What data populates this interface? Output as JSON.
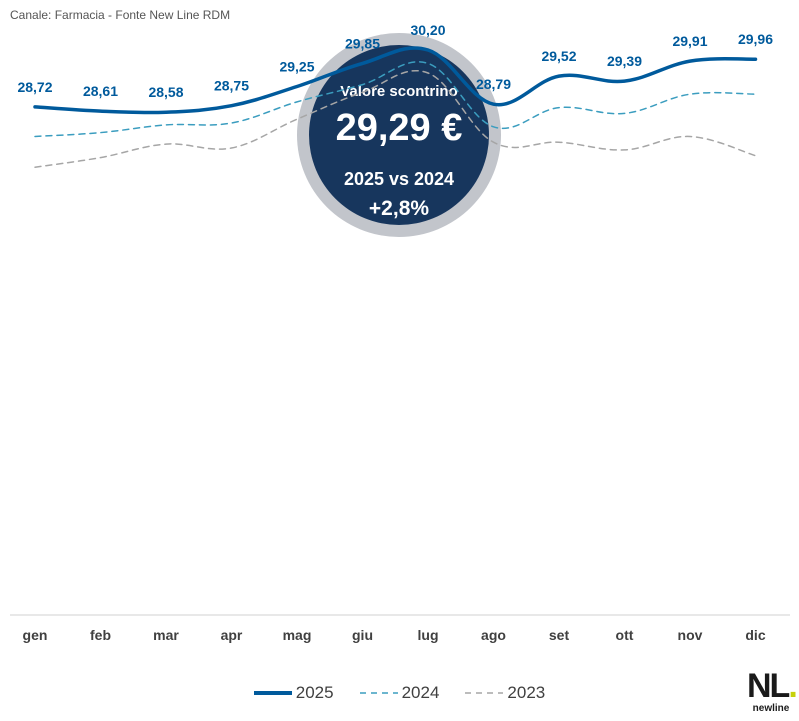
{
  "source": "Canale: Farmacia - Fonte New Line RDM",
  "badge": {
    "title": "Valore scontrino",
    "value": "29,29 €",
    "comparison": "2025 vs 2024",
    "delta": "+2,8%"
  },
  "colors": {
    "s2025": "#005a9c",
    "s2024": "#3b9dbf",
    "s2023": "#a6a6a6",
    "badge_bg": "#17365d",
    "badge_ring": "#c2c5cb"
  },
  "chart_data": {
    "type": "line",
    "categories": [
      "gen",
      "feb",
      "mar",
      "apr",
      "mag",
      "giu",
      "lug",
      "ago",
      "set",
      "ott",
      "nov",
      "dic"
    ],
    "series": [
      {
        "name": "2025",
        "values": [
          28.72,
          28.61,
          28.58,
          28.75,
          29.25,
          29.85,
          30.2,
          28.79,
          29.52,
          29.39,
          29.91,
          29.96
        ],
        "labels": [
          "28,72",
          "28,61",
          "28,58",
          "28,75",
          "29,25",
          "29,85",
          "30,20",
          "28,79",
          "29,52",
          "29,39",
          "29,91",
          "29,96"
        ]
      },
      {
        "name": "2024",
        "values": [
          27.95,
          28.05,
          28.25,
          28.3,
          28.85,
          29.3,
          29.85,
          28.2,
          28.7,
          28.55,
          29.05,
          29.05
        ]
      },
      {
        "name": "2023",
        "values": [
          27.15,
          27.4,
          27.75,
          27.65,
          28.4,
          29.1,
          29.6,
          27.8,
          27.8,
          27.6,
          27.95,
          27.45
        ]
      }
    ],
    "ylim": [
      15.5,
      31.5
    ],
    "grid": false,
    "legend": "bottom"
  },
  "logo": {
    "letters": "NL",
    "word": "newline"
  }
}
